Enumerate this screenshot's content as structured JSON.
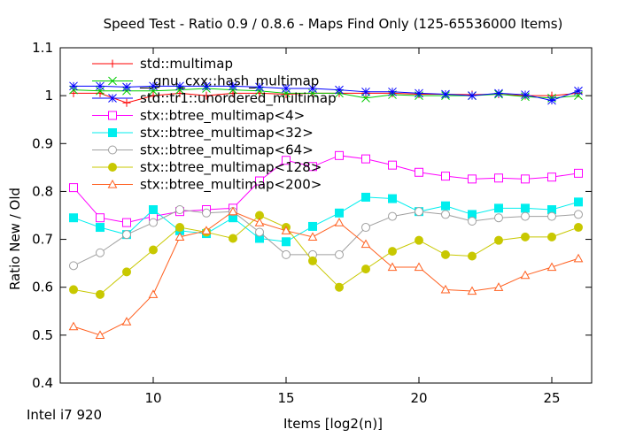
{
  "chart_data": {
    "type": "line",
    "title": "Speed Test - Ratio 0.9 / 0.8.6 - Maps Find Only (125-65536000 Items)",
    "xlabel": "Items [log2(n)]",
    "ylabel": "Ratio New / Old",
    "footnote": "Intel i7 920",
    "xlim": [
      6.5,
      26.5
    ],
    "ylim": [
      0.4,
      1.1
    ],
    "xticks": [
      10,
      15,
      20,
      25
    ],
    "yticks": [
      0.4,
      0.5,
      0.6,
      0.7,
      0.8,
      0.9,
      1.0,
      1.1
    ],
    "xtick_labels": [
      "10",
      "15",
      "20",
      "25"
    ],
    "ytick_labels": [
      "0.4",
      "0.5",
      "0.6",
      "0.7",
      "0.8",
      "0.9",
      "1",
      "1.1"
    ],
    "grid": false,
    "legend_position": "top-left",
    "x": [
      7,
      8,
      9,
      10,
      11,
      12,
      13,
      14,
      15,
      16,
      17,
      18,
      19,
      20,
      21,
      22,
      23,
      24,
      25,
      26
    ],
    "series": [
      {
        "name": "std::multimap",
        "color": "#ff0000",
        "marker": "plus",
        "values": [
          1.005,
          1.005,
          0.985,
          1.0,
          1.005,
          1.0,
          1.005,
          1.005,
          1.003,
          1.005,
          1.005,
          1.005,
          1.005,
          1.003,
          1.003,
          1.002,
          1.003,
          1.0,
          1.0,
          1.005
        ]
      },
      {
        "name": "__gnu_cxx::hash_multimap",
        "color": "#00cc00",
        "marker": "x",
        "values": [
          1.012,
          1.01,
          1.01,
          1.01,
          1.012,
          1.015,
          1.012,
          1.01,
          1.005,
          1.005,
          1.005,
          0.995,
          1.002,
          1.0,
          1.0,
          1.0,
          1.003,
          0.998,
          0.995,
          1.0
        ]
      },
      {
        "name": "std::tr1::unordered_multimap",
        "color": "#0000ff",
        "marker": "star",
        "values": [
          1.02,
          1.02,
          1.018,
          1.02,
          1.02,
          1.02,
          1.02,
          1.018,
          1.015,
          1.015,
          1.012,
          1.008,
          1.008,
          1.005,
          1.003,
          1.0,
          1.005,
          1.002,
          0.99,
          1.01
        ]
      },
      {
        "name": "stx::btree_multimap<4>",
        "color": "#ff00ff",
        "marker": "square-open",
        "values": [
          0.808,
          0.745,
          0.735,
          0.748,
          0.758,
          0.762,
          0.765,
          0.822,
          0.865,
          0.852,
          0.875,
          0.868,
          0.855,
          0.84,
          0.832,
          0.826,
          0.828,
          0.826,
          0.83,
          0.838
        ]
      },
      {
        "name": "stx::btree_multimap<32>",
        "color": "#00eeee",
        "marker": "square-filled",
        "values": [
          0.745,
          0.725,
          0.71,
          0.762,
          0.718,
          0.712,
          0.745,
          0.702,
          0.695,
          0.727,
          0.755,
          0.788,
          0.785,
          0.758,
          0.77,
          0.752,
          0.765,
          0.765,
          0.762,
          0.778
        ]
      },
      {
        "name": "stx::btree_multimap<64>",
        "color": "#a0a0a0",
        "marker": "circle-open",
        "values": [
          0.645,
          0.672,
          0.71,
          0.735,
          0.762,
          0.755,
          0.758,
          0.715,
          0.668,
          0.668,
          0.668,
          0.725,
          0.748,
          0.758,
          0.752,
          0.738,
          0.745,
          0.748,
          0.748,
          0.752
        ]
      },
      {
        "name": "stx::btree_multimap<128>",
        "color": "#c8c800",
        "marker": "circle-filled",
        "values": [
          0.595,
          0.585,
          0.632,
          0.678,
          0.725,
          0.715,
          0.702,
          0.75,
          0.725,
          0.655,
          0.6,
          0.638,
          0.675,
          0.698,
          0.668,
          0.665,
          0.698,
          0.705,
          0.705,
          0.725
        ]
      },
      {
        "name": "stx::btree_multimap<200>",
        "color": "#ff6020",
        "marker": "triangle-open",
        "values": [
          0.518,
          0.5,
          0.528,
          0.585,
          0.705,
          0.718,
          0.758,
          0.735,
          0.718,
          0.705,
          0.735,
          0.69,
          0.642,
          0.642,
          0.595,
          0.592,
          0.6,
          0.625,
          0.642,
          0.66
        ]
      }
    ]
  }
}
